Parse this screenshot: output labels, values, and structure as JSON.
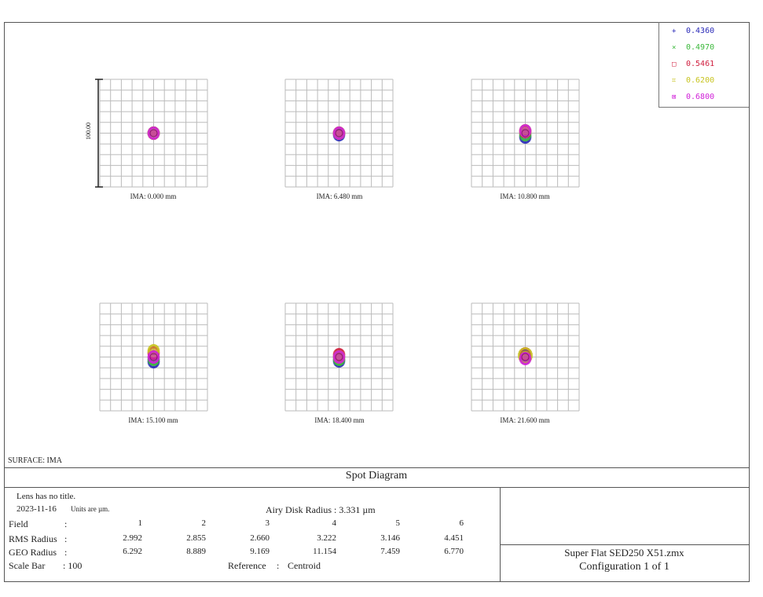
{
  "legend": [
    {
      "label": "0.4360",
      "color": "#2a2ab8",
      "symbol": "+"
    },
    {
      "label": "0.4970",
      "color": "#3cb83c",
      "symbol": "×"
    },
    {
      "label": "0.5461",
      "color": "#d02040",
      "symbol": "□"
    },
    {
      "label": "0.6200",
      "color": "#c8c420",
      "symbol": "⌗"
    },
    {
      "label": "0.6800",
      "color": "#d020d8",
      "symbol": "⊠"
    }
  ],
  "scale_label": "100.00",
  "fields": [
    "IMA: 0.000 mm",
    "IMA: 6.480 mm",
    "IMA: 10.800 mm",
    "IMA: 15.100 mm",
    "IMA: 18.400 mm",
    "IMA: 21.600 mm"
  ],
  "surface": "SURFACE: IMA",
  "title": "Spot Diagram",
  "info": {
    "lens": "Lens has no title.",
    "date": "2023-11-16",
    "units": "Units are µm.",
    "airy": "Airy Disk Radius : 3.331 µm",
    "field_label": "Field",
    "rms_label": "RMS Radius",
    "geo_label": "GEO Radius",
    "colon": ":",
    "field_nums": [
      "1",
      "2",
      "3",
      "4",
      "5",
      "6"
    ],
    "rms": [
      "2.992",
      "2.855",
      "2.660",
      "3.222",
      "3.146",
      "4.451"
    ],
    "geo": [
      "6.292",
      "8.889",
      "9.169",
      "11.154",
      "7.459",
      "6.770"
    ],
    "scale_bar": "Scale Bar",
    "scale_val": ": 100",
    "reference": "Reference",
    "reference_val": "Centroid"
  },
  "file": "Super Flat SED250 X51.zmx",
  "config": "Configuration 1 of 1"
}
